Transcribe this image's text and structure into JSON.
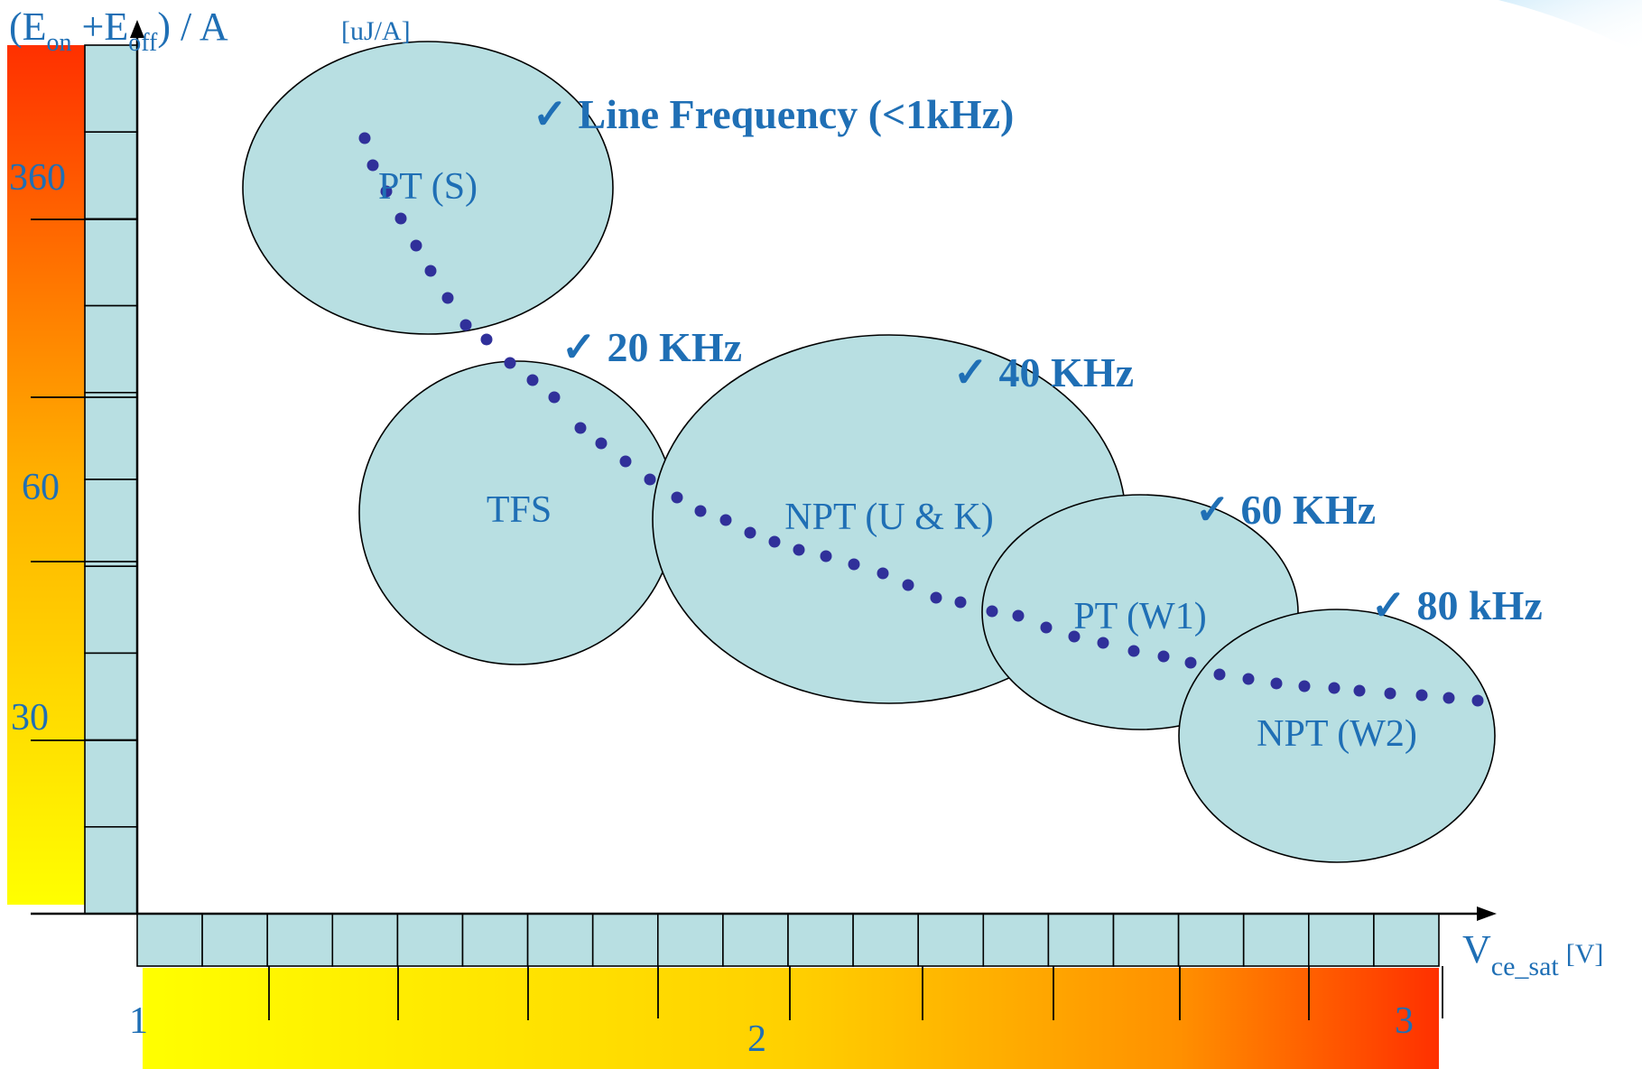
{
  "y_axis": {
    "title_open": "(E",
    "title_sub_on": "on",
    "title_plus": " +E",
    "title_sub_off": "off",
    "title_close": ") / A",
    "unit": "[uJ/A]",
    "ticks": [
      "360",
      "60",
      "30"
    ]
  },
  "x_axis": {
    "title_main": "V",
    "title_sub": "ce_sat",
    "unit": "[V]",
    "ticks": [
      "1",
      "2",
      "3"
    ]
  },
  "regions": [
    {
      "label": "PT (S)"
    },
    {
      "label": "TFS"
    },
    {
      "label": "NPT (U & K)"
    },
    {
      "label": "PT (W1)"
    },
    {
      "label": "NPT (W2)"
    }
  ],
  "frequencies": [
    {
      "check": "✓",
      "text": "Line Frequency (<1kHz)"
    },
    {
      "check": "✓",
      "text": "20 KHz"
    },
    {
      "check": "✓",
      "text": "40 KHz"
    },
    {
      "check": "✓",
      "text": "60 KHz"
    },
    {
      "check": "✓",
      "text": "80 kHz"
    }
  ],
  "colors": {
    "ellipse_fill": "#b8dfe2",
    "ellipse_stroke": "#000000",
    "label_blue": "#1f6fb5",
    "freq_blue": "#1f6fb5",
    "dot_color": "#30309a",
    "gradient_yellow": "#ffff00",
    "gradient_orange": "#ffa000",
    "gradient_red": "#ff3000"
  }
}
